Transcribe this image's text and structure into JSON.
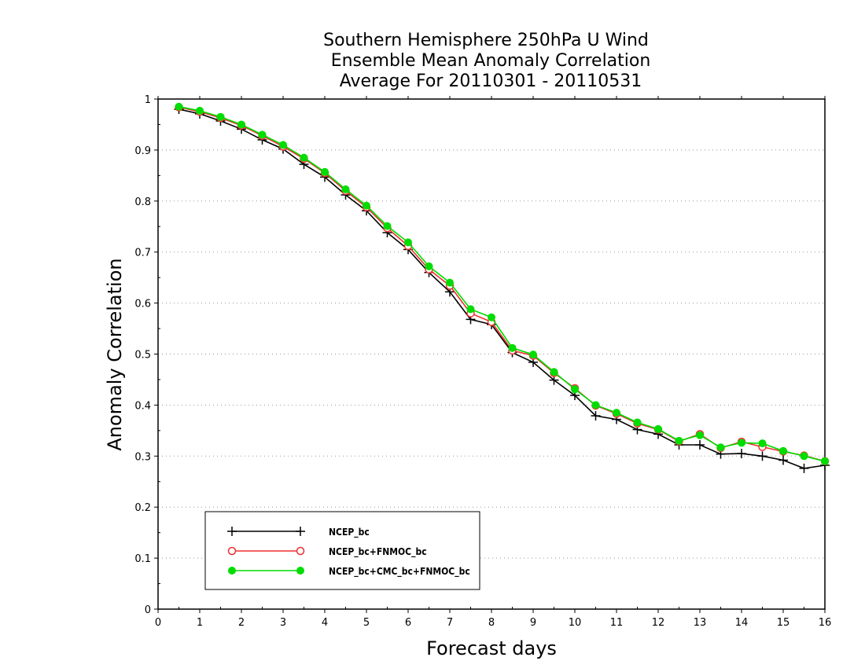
{
  "chart_data": {
    "type": "line",
    "title_lines": [
      "Southern Hemisphere 250hPa U Wind",
      "Ensemble Mean Anomaly Correlation",
      "Average For 20110301 - 20110531"
    ],
    "xlabel": "Forecast days",
    "ylabel": "Anomaly Correlation",
    "xlim": [
      0,
      16
    ],
    "ylim": [
      0,
      1
    ],
    "xticks": [
      "0",
      "1",
      "2",
      "3",
      "4",
      "5",
      "6",
      "7",
      "8",
      "9",
      "10",
      "11",
      "12",
      "13",
      "14",
      "15",
      "16"
    ],
    "yticks": [
      "0",
      "0.1",
      "0.2",
      "0.3",
      "0.4",
      "0.5",
      "0.6",
      "0.7",
      "0.8",
      "0.9",
      "1"
    ],
    "grid": "horizontal dotted",
    "legend_position": "lower-left",
    "x": [
      0.5,
      1,
      1.5,
      2,
      2.5,
      3,
      3.5,
      4,
      4.5,
      5,
      5.5,
      6,
      6.5,
      7,
      7.5,
      8,
      8.5,
      9,
      9.5,
      10,
      10.5,
      11,
      11.5,
      12,
      12.5,
      13,
      13.5,
      14,
      14.5,
      15,
      15.5,
      16
    ],
    "series": [
      {
        "name": "NCEP_bc",
        "color": "#000000",
        "marker": "plus",
        "values": [
          0.98,
          0.971,
          0.957,
          0.941,
          0.92,
          0.902,
          0.872,
          0.847,
          0.812,
          0.781,
          0.738,
          0.705,
          0.66,
          0.622,
          0.568,
          0.558,
          0.503,
          0.484,
          0.449,
          0.419,
          0.379,
          0.372,
          0.352,
          0.343,
          0.322,
          0.322,
          0.304,
          0.305,
          0.3,
          0.292,
          0.276,
          0.282
        ]
      },
      {
        "name": "NCEP_bc+FNMOC_bc",
        "color": "#ee3030",
        "marker": "open-circle",
        "values": [
          0.984,
          0.975,
          0.963,
          0.948,
          0.928,
          0.907,
          0.883,
          0.855,
          0.82,
          0.788,
          0.747,
          0.712,
          0.666,
          0.634,
          0.58,
          0.563,
          0.507,
          0.497,
          0.463,
          0.433,
          0.399,
          0.383,
          0.364,
          0.352,
          0.329,
          0.343,
          0.316,
          0.328,
          0.318,
          0.309,
          0.301,
          0.29
        ]
      },
      {
        "name": "NCEP_bc+CMC_bc+FNMOC_bc",
        "color": "#00dd00",
        "marker": "filled-circle",
        "values": [
          0.985,
          0.977,
          0.965,
          0.95,
          0.93,
          0.91,
          0.885,
          0.857,
          0.823,
          0.791,
          0.751,
          0.719,
          0.672,
          0.64,
          0.588,
          0.572,
          0.512,
          0.499,
          0.465,
          0.431,
          0.4,
          0.385,
          0.366,
          0.353,
          0.33,
          0.341,
          0.317,
          0.326,
          0.325,
          0.31,
          0.3,
          0.29
        ]
      }
    ]
  }
}
